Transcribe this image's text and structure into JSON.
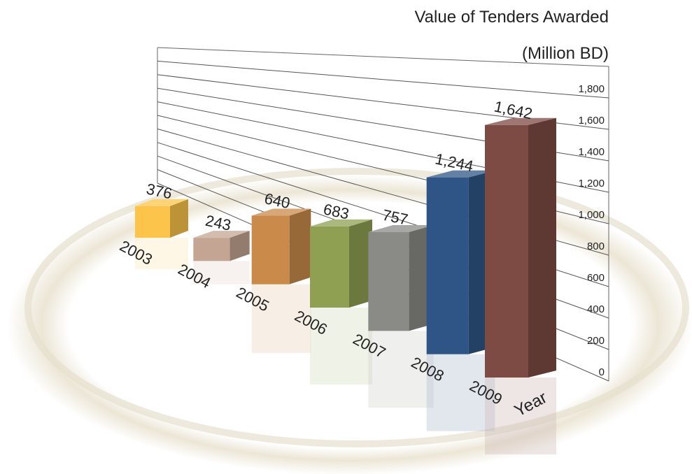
{
  "chart_data": {
    "type": "bar3d",
    "title": "Value of Tenders Awarded",
    "subtitle": "(Million BD)",
    "x_label": "Year",
    "categories": [
      "2003",
      "2004",
      "2005",
      "2006",
      "2007",
      "2008",
      "2009"
    ],
    "values": [
      376,
      243,
      640,
      683,
      757,
      1244,
      1642
    ],
    "value_labels": [
      "376",
      "243",
      "640",
      "683",
      "757",
      "1,244",
      "1,642"
    ],
    "colors": [
      "#fcc44a",
      "#c4a593",
      "#c98a4a",
      "#8fa052",
      "#8a8a87",
      "#2f5587",
      "#7d4a44"
    ],
    "ylim": [
      0,
      2000
    ],
    "yticks": [
      0,
      200,
      400,
      600,
      800,
      {
        "value": 1000,
        "label": "1,000"
      },
      {
        "value": 1200,
        "label": "1,200"
      },
      {
        "value": 1400,
        "label": "1,400"
      },
      {
        "value": 1600,
        "label": "1,600"
      },
      {
        "value": 1800,
        "label": "1,800"
      }
    ],
    "grid": true
  }
}
